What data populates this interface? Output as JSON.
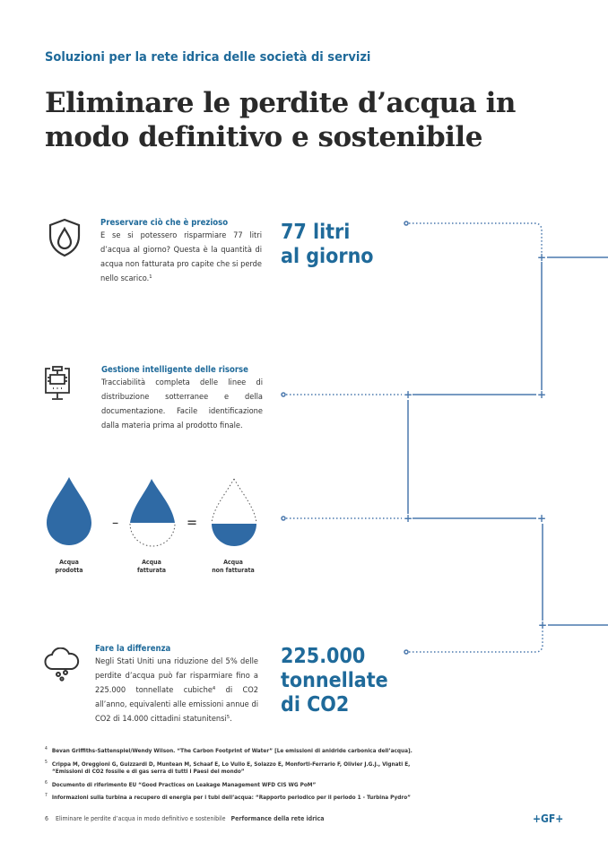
{
  "header": {
    "kicker": "Soluzioni per la rete idrica delle società di servizi",
    "title_line1": "Eliminare le perdite d’acqua in",
    "title_line2": "modo definitivo e sostenibile"
  },
  "sections": [
    {
      "icon": "shield-water-drop-icon",
      "heading": "Preservare ciò che è prezioso",
      "text": "E se si potessero risparmiare 77 litri d’acqua al giorno? Questa è la quantità di acqua non fatturata pro capite che si perde nello scarico.¹"
    },
    {
      "icon": "monitor-pipe-icon",
      "heading": "Gestione intelligente delle risorse",
      "text": "Tracciabilità completa delle linee di distribuzione sotterranee e della documentazione. Facile identificazione dalla materia prima al prodotto finale."
    },
    {
      "icon": "cloud-rain-icon",
      "heading": "Fare la differenza",
      "text": "Negli Stati Uniti una riduzione del 5% delle perdite d’acqua può far risparmiare fino a 225.000 tonnellate cubiche⁴ di CO2 all’anno, equivalenti alle emissioni annue di CO2 di 14.000 cittadini statunitensi⁵."
    }
  ],
  "stats": {
    "s1_line1": "77 litri",
    "s1_line2": "al giorno",
    "s2_line1": "225.000",
    "s2_line2": "tonnellate",
    "s2_line3": "di CO2"
  },
  "equation": {
    "minus": "–",
    "equals": "=",
    "labels": [
      [
        "Acqua",
        "prodotta"
      ],
      [
        "Acqua",
        "fatturata"
      ],
      [
        "Acqua",
        "non fatturata"
      ]
    ]
  },
  "footnotes": [
    {
      "n": "4",
      "text": "Bevan Griffiths-Sattenspiel/Wendy Wilson. “The Carbon Footprint of Water” [Le emissioni di anidride carbonica dell’acqua]."
    },
    {
      "n": "5",
      "text": "Crippa M, Oreggioni G, Guizzardi D, Muntean M, Schaaf E, Lo Vullo E, Solazzo E, Monforti-Ferrario F, Olivier J.G.J., Vignati E,",
      "text2": "“Emissioni di CO2 fossile e di gas serra di tutti i Paesi del mondo”"
    },
    {
      "n": "6",
      "text": "Documento di riferimento EU “Good Practices on Leakage Management WFD CIS WG PoM”"
    },
    {
      "n": "7",
      "text": "Informazioni sulla turbina a recupero di energia per i tubi dell’acqua: “Rapporto periodico per il periodo 1 - Turbina Pydro”"
    }
  ],
  "footer": {
    "page": "6",
    "doc": "Eliminare le perdite d’acqua in modo definitivo e sostenibile",
    "section": "Performance della rete idrica",
    "logo": "+GF+"
  },
  "colors": {
    "accent": "#1f6a9a",
    "drop": "#2f6aa5",
    "line": "#4a78ad"
  }
}
